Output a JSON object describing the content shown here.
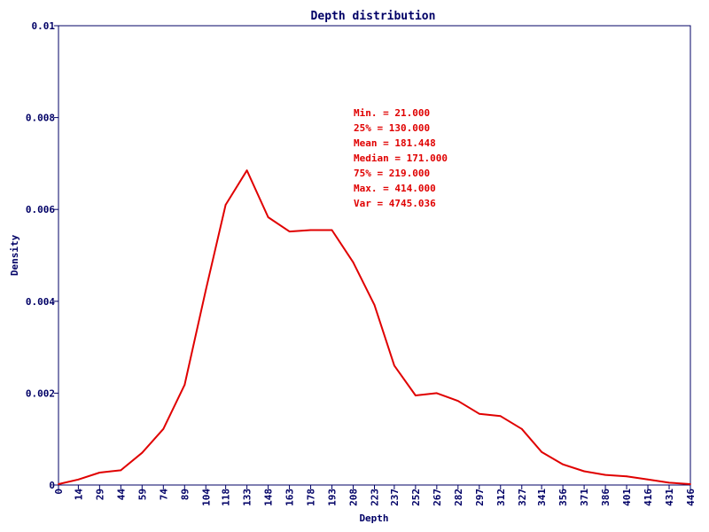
{
  "chart_data": {
    "type": "line",
    "title": "Depth distribution",
    "xlabel": "Depth",
    "ylabel": "Density",
    "xlim": [
      0,
      446
    ],
    "ylim": [
      0,
      0.01
    ],
    "x_ticks": [
      "0",
      "14",
      "29",
      "44",
      "59",
      "74",
      "89",
      "104",
      "118",
      "133",
      "148",
      "163",
      "178",
      "193",
      "208",
      "223",
      "237",
      "252",
      "267",
      "282",
      "297",
      "312",
      "327",
      "341",
      "356",
      "371",
      "386",
      "401",
      "416",
      "431",
      "446"
    ],
    "y_ticks": [
      "0",
      "0.002",
      "0.004",
      "0.006",
      "0.008",
      "0.01"
    ],
    "y_tick_values": [
      0,
      0.002,
      0.004,
      0.006,
      0.008,
      0.01
    ],
    "grid": false,
    "series": [
      {
        "color": "#e00000",
        "x": [
          0,
          14,
          29,
          44,
          59,
          74,
          89,
          104,
          118,
          133,
          148,
          163,
          178,
          193,
          208,
          223,
          237,
          252,
          267,
          282,
          297,
          312,
          327,
          341,
          356,
          371,
          386,
          401,
          416,
          431,
          446
        ],
        "y": [
          2e-05,
          0.00012,
          0.00027,
          0.00032,
          0.0007,
          0.00122,
          0.00218,
          0.00425,
          0.0061,
          0.00685,
          0.00583,
          0.00552,
          0.00555,
          0.00555,
          0.00485,
          0.00392,
          0.0026,
          0.00195,
          0.002,
          0.00183,
          0.00155,
          0.0015,
          0.00122,
          0.00072,
          0.00045,
          0.0003,
          0.00022,
          0.00019,
          0.00012,
          5e-05,
          2e-05
        ]
      }
    ],
    "stats": [
      "Min. = 21.000",
      "25% = 130.000",
      "Mean = 181.448",
      "Median = 171.000",
      "75% = 219.000",
      "Max. = 414.000",
      "Var = 4745.036"
    ],
    "colors": {
      "axis": "#000066",
      "text": "#000066",
      "stats": "#e00000",
      "frame": "#000000"
    }
  }
}
